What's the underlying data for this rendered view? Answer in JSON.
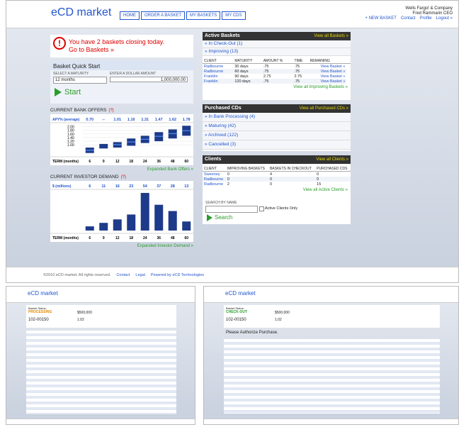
{
  "header": {
    "logo": "eCD market",
    "nav": [
      "HOME",
      "ORDER A BASKET",
      "MY BASKETS",
      "MY CDS"
    ],
    "company": "Wells Fargo! & Company",
    "user": "Fred Rammarin CEO",
    "links": [
      "+ NEW BASKET",
      "Contact",
      "Profile",
      "Logout »"
    ]
  },
  "alert": {
    "message": "You have 2 baskets closing today.",
    "link": "Go to Baskets »"
  },
  "quick_start": {
    "title": "Basket Quick Start",
    "maturity_label": "SELECT A MATURITY",
    "maturity": "12 months",
    "amount_label": "ENTER A DOLLAR AMOUNT",
    "amount": "1,000,000.00",
    "button": "Start"
  },
  "chart_data": [
    {
      "type": "range_bar",
      "title": "CURRENT BANK OFFERS",
      "help": "(?)",
      "row_label": "APY% (average)",
      "x_label": "TERM (months)",
      "categories": [
        "6",
        "9",
        "12",
        "18",
        "24",
        "36",
        "48",
        "60"
      ],
      "lows": [
        0.55,
        0.8,
        0.85,
        0.95,
        1.1,
        1.2,
        1.35,
        1.5
      ],
      "highs": [
        0.85,
        1.05,
        1.15,
        1.35,
        1.5,
        1.7,
        1.85,
        2.05
      ],
      "values": [
        0.7,
        null,
        1.01,
        1.16,
        1.31,
        1.47,
        1.62,
        1.78
      ],
      "value_labels": [
        "0.70",
        "--",
        "1.01",
        "1.16",
        "1.31",
        "1.47",
        "1.62",
        "1.78"
      ],
      "ylim": [
        0.5,
        2.1
      ],
      "yticks": [
        {
          "value": 2.0,
          "label": "2.00"
        },
        {
          "value": 1.8,
          "label": "1.80"
        },
        {
          "value": 1.6,
          "label": "1.60"
        },
        {
          "value": 1.4,
          "label": "1.40"
        },
        {
          "value": 1.2,
          "label": "1.20"
        },
        {
          "value": 1.0,
          "label": "1.00"
        }
      ],
      "color": "#1e3a8a",
      "link": "Expanded Bank Offers »"
    },
    {
      "type": "bar",
      "title": "CURRENT INVESTOR DEMAND",
      "help": "(?)",
      "row_label": "$ (millions)",
      "x_label": "TERM (months)",
      "categories": [
        "6",
        "9",
        "12",
        "18",
        "24",
        "36",
        "48",
        "60"
      ],
      "values": [
        6,
        11,
        16,
        23,
        54,
        37,
        28,
        13
      ],
      "ylim": [
        0,
        56
      ],
      "color": "#1e3a8a",
      "link": "Expanded Investor Demand »"
    }
  ],
  "active_baskets": {
    "title": "Active Baskets",
    "link": "View all Baskets »",
    "groups": [
      "» In Check-Out (1)",
      "» Improving (13)"
    ],
    "headers": [
      "CLIENT",
      "MATURITY",
      "AMOUNT %",
      "TIME",
      "REMAINING"
    ],
    "rows": [
      [
        "Radbourne",
        "30 days",
        ".75",
        ".75"
      ],
      [
        "Radbourne",
        "60 days",
        ".75",
        ".75"
      ],
      [
        "Franklin",
        "90 days",
        "2.75",
        "2.75"
      ],
      [
        "Franklin",
        "120 days",
        ".75",
        ".75"
      ]
    ],
    "row_link": "View Basket »",
    "footer_link": "View all Improving Baskets »"
  },
  "purchased": {
    "title": "Purchased CDs",
    "link": "View all Purchased CDs »",
    "items": [
      "» In Bank Processing (4)",
      "» Maturing (42)",
      "» Archived (122)",
      "» Cancelled (3)"
    ]
  },
  "clients": {
    "title": "Clients",
    "link": "View all Clients »",
    "headers": [
      "CLIENT",
      "IMPROVING BASKETS",
      "BASKETS IN CHECKOUT",
      "PURCHASED CDS"
    ],
    "rows": [
      [
        "Sweeney",
        "0",
        "4",
        "0"
      ],
      [
        "Radbourne",
        "0",
        "0",
        "0"
      ],
      [
        "Radbourne",
        "2",
        "0",
        "15"
      ]
    ],
    "footer_link": "View all Active Clients »",
    "search_label": "SEARCH BY NAME",
    "checkbox": "Active Clients Only",
    "button": "Search"
  },
  "footer": {
    "copyright": "©2010 eCD market. All rights reserved.",
    "links": [
      "Contact",
      "Legal",
      "Powered by eCD Technologies"
    ]
  },
  "thumbs": [
    {
      "status_label": "Basket Status:",
      "status": "PROCESSING",
      "id": "102-00150",
      "amount": "$500,000",
      "rate": "1.02"
    },
    {
      "status_label": "Basket Status:",
      "status": "CHECK-OUT",
      "id": "102-00150",
      "amount": "$500,000",
      "rate": "1.02",
      "message": "Please Authorize Purchase."
    }
  ]
}
